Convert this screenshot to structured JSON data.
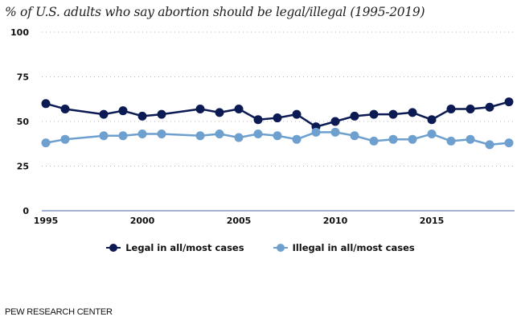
{
  "chart_data": {
    "type": "line",
    "title": "% of U.S. adults who say abortion should be legal/illegal (1995-2019)",
    "xlabel": "",
    "ylabel": "",
    "ylim": [
      0,
      100
    ],
    "xlim": [
      1995,
      2019
    ],
    "yticks": [
      0,
      25,
      50,
      75,
      100
    ],
    "xticks": [
      1995,
      2000,
      2005,
      2010,
      2015
    ],
    "grid": "horizontal-dotted",
    "legend_position": "bottom-center",
    "x": [
      1995,
      1996,
      1998,
      1999,
      2000,
      2001,
      2003,
      2004,
      2005,
      2006,
      2007,
      2008,
      2009,
      2010,
      2011,
      2012,
      2013,
      2014,
      2015,
      2016,
      2017,
      2018,
      2019
    ],
    "series": [
      {
        "name": "Legal in all/most cases",
        "color": "#0b1a52",
        "values": [
          60,
          57,
          54,
          56,
          53,
          54,
          57,
          55,
          57,
          51,
          52,
          54,
          47,
          50,
          53,
          54,
          54,
          55,
          51,
          57,
          57,
          58,
          61
        ]
      },
      {
        "name": "Illegal in all/most cases",
        "color": "#6d9fcf",
        "values": [
          38,
          40,
          42,
          42,
          43,
          43,
          42,
          43,
          41,
          43,
          42,
          40,
          44,
          44,
          42,
          39,
          40,
          40,
          43,
          39,
          40,
          37,
          38
        ]
      }
    ]
  },
  "footer": {
    "source": "PEW RESEARCH CENTER"
  },
  "colors": {
    "axis": "#6b83b5",
    "grid": "#b5b5b5"
  }
}
